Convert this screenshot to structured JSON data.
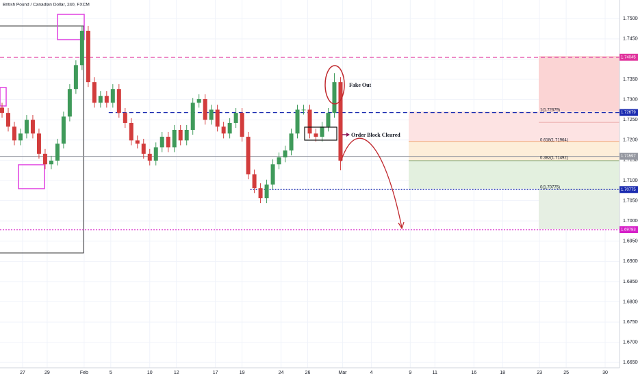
{
  "chart_data": {
    "type": "candlestick",
    "title": "British Pound / Canadian Dollar, 240, FXCM",
    "up_color": "#3f9a5a",
    "down_color": "#d23c3c",
    "x": [
      1,
      4,
      7,
      10,
      13,
      16,
      19,
      22,
      25,
      28,
      31,
      34,
      37,
      40,
      43,
      46,
      49,
      52,
      55,
      58,
      61,
      64,
      67,
      70,
      73,
      76,
      79,
      82,
      85,
      88,
      91,
      94,
      97,
      100,
      103,
      106,
      109,
      112,
      115,
      118,
      121,
      124,
      127,
      130,
      133,
      136,
      139,
      142,
      145,
      148,
      151,
      154,
      157,
      160,
      163,
      166
    ],
    "open": [
      1.728,
      1.7267,
      1.7233,
      1.7199,
      1.7216,
      1.725,
      1.7216,
      1.7166,
      1.714,
      1.7149,
      1.7191,
      1.7258,
      1.7326,
      1.7385,
      1.747,
      1.7343,
      1.7292,
      1.7309,
      1.7292,
      1.7326,
      1.7267,
      1.7242,
      1.7199,
      1.7191,
      1.7166,
      1.7149,
      1.7182,
      1.7208,
      1.7182,
      1.7225,
      1.7199,
      1.7225,
      1.7292,
      1.7301,
      1.725,
      1.7275,
      1.7233,
      1.7216,
      1.7242,
      1.7267,
      1.7208,
      1.7115,
      1.7081,
      1.7056,
      1.709,
      1.714,
      1.7157,
      1.7174,
      1.7216,
      1.7275,
      1.7275,
      1.7216,
      1.7208,
      1.7233,
      1.7267,
      1.7343
    ],
    "high": [
      1.7292,
      1.7279,
      1.7245,
      1.7228,
      1.7262,
      1.7262,
      1.7228,
      1.7178,
      1.7161,
      1.7203,
      1.727,
      1.7338,
      1.7397,
      1.7482,
      1.7482,
      1.7355,
      1.7321,
      1.7321,
      1.7338,
      1.7338,
      1.7279,
      1.7254,
      1.7211,
      1.7203,
      1.7178,
      1.7194,
      1.722,
      1.722,
      1.7237,
      1.7237,
      1.7237,
      1.7304,
      1.7313,
      1.7313,
      1.7287,
      1.7287,
      1.7245,
      1.7254,
      1.7279,
      1.7279,
      1.722,
      1.7127,
      1.7093,
      1.7102,
      1.7152,
      1.7169,
      1.7186,
      1.7228,
      1.7287,
      1.7287,
      1.7287,
      1.7228,
      1.7245,
      1.7279,
      1.7365,
      1.7355
    ],
    "low": [
      1.7255,
      1.7221,
      1.7187,
      1.7187,
      1.7204,
      1.7204,
      1.7154,
      1.7128,
      1.7128,
      1.7137,
      1.7179,
      1.7246,
      1.7314,
      1.7373,
      1.7331,
      1.728,
      1.728,
      1.728,
      1.728,
      1.7255,
      1.723,
      1.7187,
      1.7179,
      1.7154,
      1.7137,
      1.7137,
      1.717,
      1.717,
      1.717,
      1.7187,
      1.7187,
      1.7213,
      1.728,
      1.7238,
      1.7238,
      1.7221,
      1.7204,
      1.7204,
      1.723,
      1.7196,
      1.7103,
      1.7069,
      1.7044,
      1.7044,
      1.7078,
      1.7128,
      1.7145,
      1.7162,
      1.7204,
      1.7263,
      1.7204,
      1.7196,
      1.7196,
      1.7221,
      1.7255,
      1.7125
    ],
    "close": [
      1.7267,
      1.7233,
      1.7199,
      1.7216,
      1.725,
      1.7216,
      1.7166,
      1.714,
      1.7149,
      1.7191,
      1.7258,
      1.7326,
      1.7385,
      1.747,
      1.7343,
      1.7292,
      1.7309,
      1.7292,
      1.7326,
      1.7267,
      1.7242,
      1.7199,
      1.7191,
      1.7166,
      1.7149,
      1.7182,
      1.7208,
      1.7182,
      1.7225,
      1.7199,
      1.7225,
      1.7292,
      1.7301,
      1.725,
      1.7275,
      1.7233,
      1.7216,
      1.7242,
      1.7267,
      1.7208,
      1.7115,
      1.7081,
      1.7056,
      1.709,
      1.714,
      1.7157,
      1.7174,
      1.7216,
      1.7275,
      1.7275,
      1.7216,
      1.7208,
      1.7233,
      1.7267,
      1.7343,
      1.7149
    ],
    "xlim": [
      0,
      302
    ],
    "ylim": [
      1.6637,
      1.7546
    ],
    "xticks": [
      {
        "value": 11,
        "label": "27"
      },
      {
        "value": 23,
        "label": "29"
      },
      {
        "value": 41,
        "label": "Feb"
      },
      {
        "value": 54,
        "label": "5"
      },
      {
        "value": 73,
        "label": "10"
      },
      {
        "value": 86,
        "label": "12"
      },
      {
        "value": 105,
        "label": "17"
      },
      {
        "value": 118,
        "label": "19"
      },
      {
        "value": 137,
        "label": "24"
      },
      {
        "value": 150,
        "label": "26"
      },
      {
        "value": 167,
        "label": "Mar"
      },
      {
        "value": 181,
        "label": "4"
      },
      {
        "value": 200,
        "label": "9"
      },
      {
        "value": 212,
        "label": "11"
      },
      {
        "value": 231,
        "label": "16"
      },
      {
        "value": 245,
        "label": "18"
      },
      {
        "value": 263,
        "label": "23"
      },
      {
        "value": 276,
        "label": "25"
      },
      {
        "value": 295,
        "label": "30"
      }
    ],
    "yticks": [
      {
        "value": 1.665,
        "label": "1.66500"
      },
      {
        "value": 1.67,
        "label": "1.67000"
      },
      {
        "value": 1.675,
        "label": "1.67500"
      },
      {
        "value": 1.68,
        "label": "1.68000"
      },
      {
        "value": 1.685,
        "label": "1.68500"
      },
      {
        "value": 1.69,
        "label": "1.69000"
      },
      {
        "value": 1.695,
        "label": "1.69500"
      },
      {
        "value": 1.7,
        "label": "1.70000"
      },
      {
        "value": 1.705,
        "label": "1.70500"
      },
      {
        "value": 1.71,
        "label": "1.71000"
      },
      {
        "value": 1.715,
        "label": "1.71500"
      },
      {
        "value": 1.72,
        "label": "1.72000"
      },
      {
        "value": 1.725,
        "label": "1.72500"
      },
      {
        "value": 1.73,
        "label": "1.73000"
      },
      {
        "value": 1.735,
        "label": "1.73500"
      },
      {
        "value": 1.74,
        "label": "1.74000"
      },
      {
        "value": 1.745,
        "label": "1.74500"
      },
      {
        "value": 1.75,
        "label": "1.75000"
      }
    ],
    "grid": true,
    "levels": [
      {
        "value": 1.74045,
        "color": "#e0329c",
        "style": "dashed",
        "start": 0
      },
      {
        "value": 1.72679,
        "color": "#1a2bb0",
        "style": "dashed",
        "start": 53
      },
      {
        "value": 1.71597,
        "color": "#9598a1",
        "style": "solid",
        "start": 0
      },
      {
        "value": 1.70775,
        "color": "#1a2bb0",
        "style": "dotted",
        "start": 122
      },
      {
        "value": 1.69783,
        "color": "#d620c8",
        "style": "dotted",
        "start": 0
      }
    ],
    "annotations": {
      "fake_out": "Fake Out",
      "order_block": "Order Block Cleared"
    },
    "fib_labels": [
      {
        "text": "1(1.72679)",
        "color": "#e05050"
      },
      {
        "text": "0.618(1.71964)",
        "color": "#e08a2a"
      },
      {
        "text": "0.382(1.71492)",
        "color": "#6a8a5a"
      },
      {
        "text": "0(1.70775)",
        "color": "#8a9a8a"
      }
    ]
  }
}
